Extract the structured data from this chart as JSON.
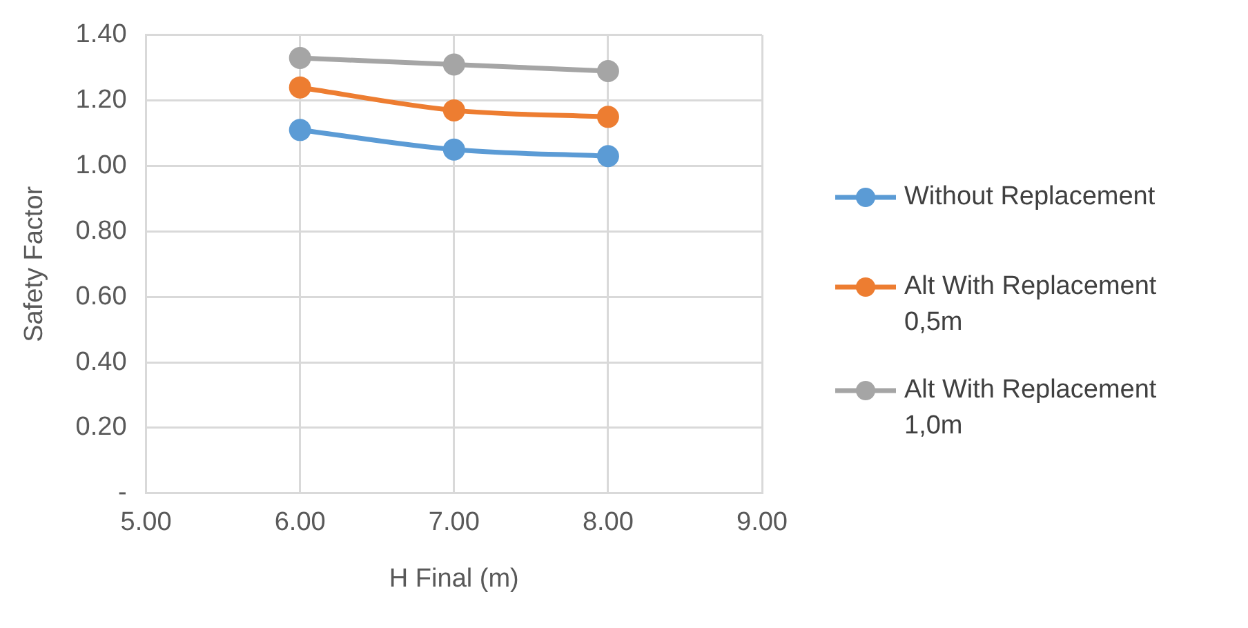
{
  "chart_data": {
    "type": "line",
    "xlabel": "H Final (m)",
    "ylabel": "Safety Factor",
    "x": [
      6,
      7,
      8
    ],
    "series": [
      {
        "name": "Without Replacement",
        "color": "#5b9bd5",
        "values": [
          1.11,
          1.05,
          1.03
        ]
      },
      {
        "name": "Alt With Replacement 0,5m",
        "color": "#ed7d31",
        "values": [
          1.24,
          1.17,
          1.15
        ]
      },
      {
        "name": "Alt With Replacement 1,0m",
        "color": "#a5a5a5",
        "values": [
          1.33,
          1.31,
          1.29
        ]
      }
    ],
    "xlim": [
      5,
      9
    ],
    "xticks": [
      {
        "value": 5,
        "label": "5.00"
      },
      {
        "value": 6,
        "label": "6.00"
      },
      {
        "value": 7,
        "label": "7.00"
      },
      {
        "value": 8,
        "label": "8.00"
      },
      {
        "value": 9,
        "label": "9.00"
      }
    ],
    "ylim": [
      0,
      1.4
    ],
    "yticks": [
      {
        "value": 0,
        "label": "-"
      },
      {
        "value": 0.2,
        "label": "0.20"
      },
      {
        "value": 0.4,
        "label": "0.40"
      },
      {
        "value": 0.6,
        "label": "0.60"
      },
      {
        "value": 0.8,
        "label": "0.80"
      },
      {
        "value": 1,
        "label": "1.00"
      },
      {
        "value": 1.2,
        "label": "1.20"
      },
      {
        "value": 1.4,
        "label": "1.40"
      }
    ],
    "grid": true,
    "legend": "right",
    "marker": "circle",
    "line_style": "solid"
  }
}
